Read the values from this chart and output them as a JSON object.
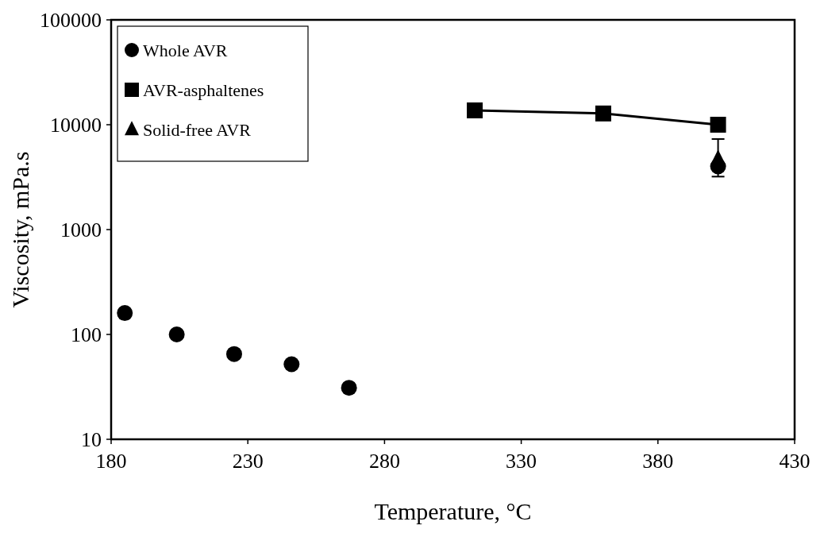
{
  "chart_data": {
    "type": "scatter",
    "xlabel": "Temperature, °C",
    "ylabel": "Viscosity, mPa.s",
    "log": "y",
    "xlim": [
      180,
      430
    ],
    "xticks": [
      180,
      230,
      280,
      330,
      380,
      430
    ],
    "ylim": [
      10,
      100000
    ],
    "yticks": [
      10,
      100,
      1000,
      10000,
      100000
    ],
    "grid": false,
    "legend": "top left",
    "series": [
      {
        "name": "Whole AVR",
        "type": "scatter",
        "marker": "circle",
        "color": "#000000",
        "x": [
          185,
          204,
          225,
          246,
          267,
          402
        ],
        "values": [
          160,
          100,
          65,
          52,
          31,
          4000
        ]
      },
      {
        "name": "AVR-asphaltenes",
        "type": "line",
        "marker": "square",
        "color": "#000000",
        "x": [
          313,
          360,
          402
        ],
        "values": [
          13700,
          12800,
          10000
        ]
      },
      {
        "name": "Solid-free AVR",
        "type": "scatter",
        "marker": "triangle",
        "color": "#000000",
        "x": [
          402
        ],
        "values": [
          4700
        ],
        "errors": [
          [
            3200,
            7300
          ]
        ]
      }
    ]
  }
}
